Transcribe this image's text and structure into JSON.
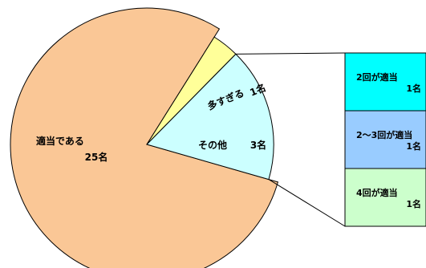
{
  "chart_data": {
    "type": "pie",
    "title": "",
    "slices": [
      {
        "label": "適当である",
        "value_label": "25名",
        "value": 25,
        "color": "#FAC796"
      },
      {
        "label": "多すぎる",
        "value_label": "1名",
        "value": 1,
        "color": "#FFFF99"
      },
      {
        "label": "その他",
        "value_label": "3名",
        "value": 3,
        "color": "#CCFFFF"
      }
    ],
    "breakdown": {
      "of": "その他",
      "items": [
        {
          "label": "2回が適当",
          "value_label": "1名",
          "value": 1,
          "color": "#00FFFF"
        },
        {
          "label": "2～3回が適当",
          "value_label": "1名",
          "value": 1,
          "color": "#99CCFF"
        },
        {
          "label": "4回が適当",
          "value_label": "1名",
          "value": 1,
          "color": "#CCFFCC"
        }
      ]
    }
  }
}
